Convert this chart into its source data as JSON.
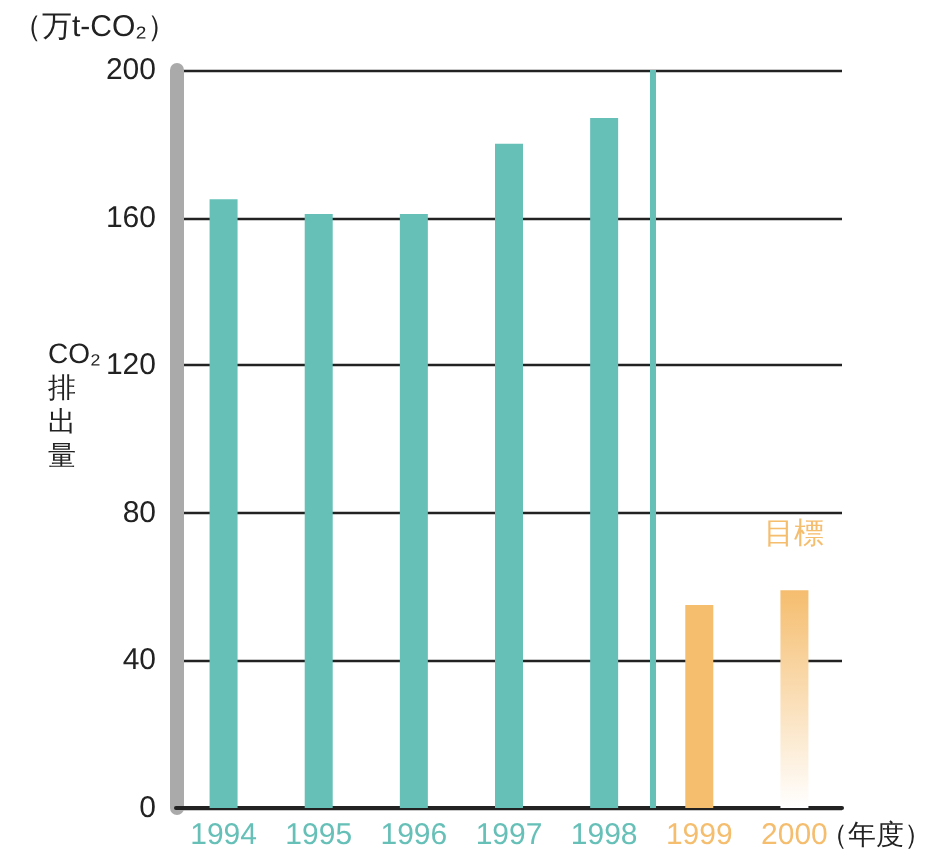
{
  "chart_data": {
    "type": "bar",
    "x": [
      1994,
      1995,
      1996,
      1997,
      1998,
      1999,
      2000
    ],
    "values": [
      165,
      161,
      161,
      180,
      187,
      55,
      59
    ],
    "colors": [
      "#66c0b8",
      "#66c0b8",
      "#66c0b8",
      "#66c0b8",
      "#66c0b8",
      "#f5bd6e",
      "#f5bd6e"
    ],
    "xlim": [
      1993.5,
      2000.5
    ],
    "xticks": [
      1994,
      1995,
      1996,
      1997,
      1998,
      1999,
      2000
    ],
    "ylim": [
      0,
      200
    ],
    "yticks": [
      0,
      40,
      80,
      120,
      160,
      200
    ],
    "ylabel": "CO₂排出量",
    "xlabel": "（年度）",
    "ref_lines": [
      {
        "axis": "x",
        "value": 1998.5,
        "color": "#66c0b8"
      }
    ],
    "annotations": [
      "（万t-CO₂）",
      {
        "text": "目標",
        "x": 2000,
        "y": 59
      }
    ],
    "grid": "y"
  }
}
